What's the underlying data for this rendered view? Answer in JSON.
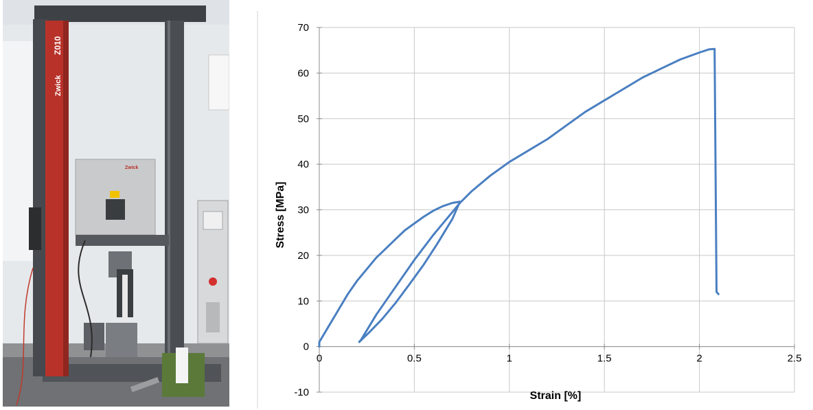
{
  "photo": {
    "machine_brand": "Zwick",
    "machine_model": "Z010",
    "chamber_brand": "Zwick",
    "palette": {
      "wall": "#e9ecef",
      "column_red": "#b8322a",
      "frame_dark": "#4a4e52",
      "chamber_grey": "#c9cacb",
      "floor": "#8a8c8e",
      "box_green": "#5b7a3a"
    }
  },
  "chart_data": {
    "type": "line",
    "title": "",
    "xlabel": "Strain [%]",
    "ylabel": "Stress [MPa]",
    "xlim": [
      0,
      2.5
    ],
    "ylim": [
      -10,
      70
    ],
    "xticks": [
      0,
      0.5,
      1,
      1.5,
      2,
      2.5
    ],
    "xtick_labels": [
      "0",
      "0.5",
      "1",
      "1.5",
      "2",
      "2.5"
    ],
    "yticks": [
      -10,
      0,
      10,
      20,
      30,
      40,
      50,
      60,
      70
    ],
    "ytick_labels": [
      "-10",
      "0",
      "10",
      "20",
      "30",
      "40",
      "50",
      "60",
      "70"
    ],
    "grid": true,
    "legend": "none",
    "series": [
      {
        "color": "#4a7fc1",
        "x": [
          0,
          0,
          0.05,
          0.1,
          0.15,
          0.2,
          0.25,
          0.3,
          0.35,
          0.4,
          0.45,
          0.5,
          0.55,
          0.6,
          0.65,
          0.7,
          0.74,
          0.7,
          0.62,
          0.55,
          0.48,
          0.4,
          0.33,
          0.26,
          0.21,
          0.22,
          0.3,
          0.4,
          0.5,
          0.6,
          0.7,
          0.74,
          0.8,
          0.9,
          1.0,
          1.1,
          1.2,
          1.3,
          1.4,
          1.5,
          1.6,
          1.7,
          1.8,
          1.9,
          2.0,
          2.05,
          2.08,
          2.09,
          2.1
        ],
        "y": [
          0,
          1,
          4.5,
          8,
          11.5,
          14.5,
          17,
          19.5,
          21.5,
          23.5,
          25.5,
          27,
          28.5,
          29.8,
          30.8,
          31.5,
          31.8,
          28,
          22.5,
          18,
          14,
          9.5,
          6,
          3,
          1,
          1.5,
          7,
          13,
          19,
          24.5,
          29.5,
          31.5,
          34,
          37.5,
          40.5,
          43,
          45.5,
          48.5,
          51.5,
          54,
          56.5,
          59,
          61,
          63,
          64.5,
          65.2,
          65.3,
          12,
          11.5
        ]
      }
    ]
  }
}
